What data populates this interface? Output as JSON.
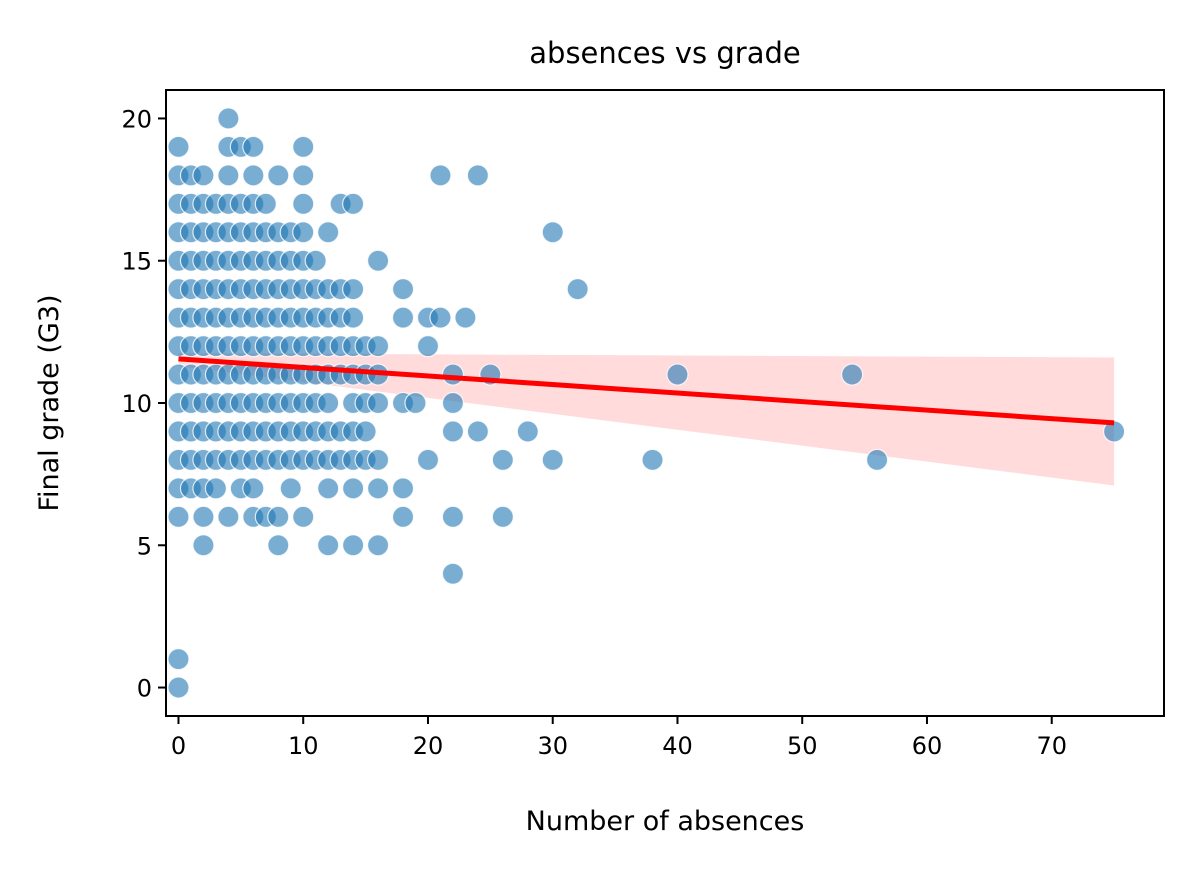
{
  "chart_data": {
    "type": "scatter",
    "title": "absences vs grade",
    "xlabel": "Number of absences",
    "ylabel": "Final grade (G3)",
    "xlim": [
      -1,
      79
    ],
    "ylim": [
      -1,
      21
    ],
    "xticks": [
      0,
      10,
      20,
      30,
      40,
      50,
      60,
      70
    ],
    "yticks": [
      0,
      5,
      10,
      15,
      20
    ],
    "grid": false,
    "point_color": "#1f77b4",
    "point_opacity": 0.6,
    "points": [
      [
        0,
        0
      ],
      [
        0,
        1
      ],
      [
        0,
        6
      ],
      [
        0,
        7
      ],
      [
        0,
        8
      ],
      [
        0,
        9
      ],
      [
        0,
        10
      ],
      [
        0,
        11
      ],
      [
        0,
        12
      ],
      [
        0,
        13
      ],
      [
        0,
        14
      ],
      [
        0,
        15
      ],
      [
        0,
        16
      ],
      [
        0,
        17
      ],
      [
        0,
        18
      ],
      [
        0,
        19
      ],
      [
        1,
        7
      ],
      [
        1,
        8
      ],
      [
        1,
        9
      ],
      [
        1,
        10
      ],
      [
        1,
        11
      ],
      [
        1,
        12
      ],
      [
        1,
        13
      ],
      [
        1,
        14
      ],
      [
        1,
        15
      ],
      [
        1,
        16
      ],
      [
        1,
        17
      ],
      [
        1,
        18
      ],
      [
        2,
        5
      ],
      [
        2,
        6
      ],
      [
        2,
        7
      ],
      [
        2,
        8
      ],
      [
        2,
        9
      ],
      [
        2,
        10
      ],
      [
        2,
        11
      ],
      [
        2,
        12
      ],
      [
        2,
        13
      ],
      [
        2,
        14
      ],
      [
        2,
        15
      ],
      [
        2,
        16
      ],
      [
        2,
        17
      ],
      [
        2,
        18
      ],
      [
        3,
        7
      ],
      [
        3,
        8
      ],
      [
        3,
        9
      ],
      [
        3,
        10
      ],
      [
        3,
        11
      ],
      [
        3,
        12
      ],
      [
        3,
        13
      ],
      [
        3,
        14
      ],
      [
        3,
        15
      ],
      [
        3,
        16
      ],
      [
        3,
        17
      ],
      [
        4,
        6
      ],
      [
        4,
        8
      ],
      [
        4,
        9
      ],
      [
        4,
        10
      ],
      [
        4,
        11
      ],
      [
        4,
        12
      ],
      [
        4,
        13
      ],
      [
        4,
        14
      ],
      [
        4,
        15
      ],
      [
        4,
        16
      ],
      [
        4,
        17
      ],
      [
        4,
        18
      ],
      [
        4,
        19
      ],
      [
        4,
        20
      ],
      [
        5,
        7
      ],
      [
        5,
        8
      ],
      [
        5,
        9
      ],
      [
        5,
        10
      ],
      [
        5,
        11
      ],
      [
        5,
        12
      ],
      [
        5,
        13
      ],
      [
        5,
        14
      ],
      [
        5,
        15
      ],
      [
        5,
        16
      ],
      [
        5,
        17
      ],
      [
        5,
        19
      ],
      [
        6,
        6
      ],
      [
        6,
        7
      ],
      [
        6,
        8
      ],
      [
        6,
        9
      ],
      [
        6,
        10
      ],
      [
        6,
        11
      ],
      [
        6,
        12
      ],
      [
        6,
        13
      ],
      [
        6,
        14
      ],
      [
        6,
        15
      ],
      [
        6,
        16
      ],
      [
        6,
        17
      ],
      [
        6,
        18
      ],
      [
        6,
        19
      ],
      [
        7,
        6
      ],
      [
        7,
        8
      ],
      [
        7,
        9
      ],
      [
        7,
        10
      ],
      [
        7,
        11
      ],
      [
        7,
        12
      ],
      [
        7,
        13
      ],
      [
        7,
        14
      ],
      [
        7,
        15
      ],
      [
        7,
        16
      ],
      [
        7,
        17
      ],
      [
        8,
        5
      ],
      [
        8,
        6
      ],
      [
        8,
        8
      ],
      [
        8,
        9
      ],
      [
        8,
        10
      ],
      [
        8,
        11
      ],
      [
        8,
        12
      ],
      [
        8,
        13
      ],
      [
        8,
        14
      ],
      [
        8,
        15
      ],
      [
        8,
        16
      ],
      [
        8,
        18
      ],
      [
        9,
        7
      ],
      [
        9,
        8
      ],
      [
        9,
        9
      ],
      [
        9,
        10
      ],
      [
        9,
        11
      ],
      [
        9,
        12
      ],
      [
        9,
        13
      ],
      [
        9,
        14
      ],
      [
        9,
        15
      ],
      [
        9,
        16
      ],
      [
        10,
        6
      ],
      [
        10,
        8
      ],
      [
        10,
        9
      ],
      [
        10,
        10
      ],
      [
        10,
        11
      ],
      [
        10,
        12
      ],
      [
        10,
        13
      ],
      [
        10,
        14
      ],
      [
        10,
        15
      ],
      [
        10,
        16
      ],
      [
        10,
        17
      ],
      [
        10,
        18
      ],
      [
        10,
        19
      ],
      [
        11,
        8
      ],
      [
        11,
        9
      ],
      [
        11,
        10
      ],
      [
        11,
        11
      ],
      [
        11,
        12
      ],
      [
        11,
        13
      ],
      [
        11,
        14
      ],
      [
        11,
        15
      ],
      [
        12,
        5
      ],
      [
        12,
        7
      ],
      [
        12,
        8
      ],
      [
        12,
        9
      ],
      [
        12,
        10
      ],
      [
        12,
        11
      ],
      [
        12,
        12
      ],
      [
        12,
        13
      ],
      [
        12,
        14
      ],
      [
        12,
        16
      ],
      [
        13,
        8
      ],
      [
        13,
        9
      ],
      [
        13,
        11
      ],
      [
        13,
        12
      ],
      [
        13,
        13
      ],
      [
        13,
        14
      ],
      [
        13,
        17
      ],
      [
        14,
        5
      ],
      [
        14,
        7
      ],
      [
        14,
        8
      ],
      [
        14,
        9
      ],
      [
        14,
        10
      ],
      [
        14,
        11
      ],
      [
        14,
        12
      ],
      [
        14,
        13
      ],
      [
        14,
        14
      ],
      [
        14,
        17
      ],
      [
        15,
        8
      ],
      [
        15,
        9
      ],
      [
        15,
        10
      ],
      [
        15,
        11
      ],
      [
        15,
        12
      ],
      [
        16,
        5
      ],
      [
        16,
        7
      ],
      [
        16,
        8
      ],
      [
        16,
        10
      ],
      [
        16,
        11
      ],
      [
        16,
        12
      ],
      [
        16,
        15
      ],
      [
        18,
        6
      ],
      [
        18,
        7
      ],
      [
        18,
        10
      ],
      [
        18,
        13
      ],
      [
        18,
        14
      ],
      [
        19,
        10
      ],
      [
        20,
        8
      ],
      [
        20,
        12
      ],
      [
        20,
        13
      ],
      [
        21,
        13
      ],
      [
        21,
        18
      ],
      [
        22,
        4
      ],
      [
        22,
        6
      ],
      [
        22,
        9
      ],
      [
        22,
        10
      ],
      [
        22,
        11
      ],
      [
        23,
        13
      ],
      [
        24,
        9
      ],
      [
        24,
        18
      ],
      [
        25,
        11
      ],
      [
        26,
        6
      ],
      [
        26,
        8
      ],
      [
        28,
        9
      ],
      [
        30,
        8
      ],
      [
        30,
        16
      ],
      [
        32,
        14
      ],
      [
        38,
        8
      ],
      [
        40,
        11
      ],
      [
        54,
        11
      ],
      [
        56,
        8
      ],
      [
        75,
        9
      ]
    ],
    "regression": {
      "color": "#ff0000",
      "x": [
        0,
        75
      ],
      "y": [
        11.55,
        9.3
      ],
      "ci_color": "#ff9999",
      "ci_upper": [
        11.75,
        11.6
      ],
      "ci_lower": [
        11.3,
        7.1
      ]
    }
  }
}
